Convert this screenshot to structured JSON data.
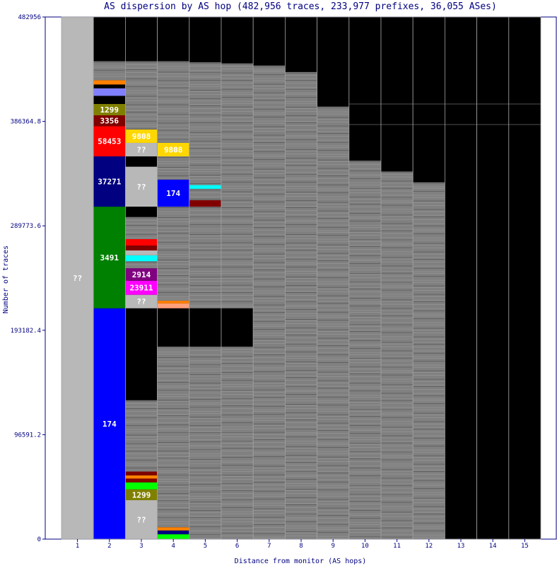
{
  "chart_data": {
    "type": "bar",
    "title": "AS dispersion by AS hop (482,956 traces, 233,977 prefixes, 36,055 ASes)",
    "xlabel": "Distance from monitor (AS hops)",
    "ylabel": "Number of traces",
    "ylim": [
      0,
      482956
    ],
    "yticks": [
      "0",
      "96591.2",
      "193182.4",
      "289773.6",
      "386364.8",
      "482956"
    ],
    "categories": [
      "1",
      "2",
      "3",
      "4",
      "5",
      "6",
      "7",
      "8",
      "9",
      "10",
      "11",
      "12",
      "13",
      "14",
      "15"
    ],
    "colors": {
      "unknown": "#b8b8b8",
      "minor": "#808080",
      "background": "#000000",
      "line": "#a0a0a0"
    },
    "columns": [
      {
        "hop": "1",
        "top": 482956,
        "segments": [
          {
            "as": "??",
            "start": 0,
            "end": 482956,
            "color": "#b8b8b8"
          }
        ]
      },
      {
        "hop": "2",
        "top": 442000,
        "segments": [
          {
            "as": "174",
            "start": 0,
            "end": 213500,
            "color": "#0000ff"
          },
          {
            "as": "3491",
            "start": 213500,
            "end": 307500,
            "color": "#008000"
          },
          {
            "as": "37271",
            "start": 307500,
            "end": 354000,
            "color": "#000080"
          },
          {
            "as": "58453",
            "start": 354000,
            "end": 382000,
            "color": "#ff0000"
          },
          {
            "as": "3356",
            "start": 382000,
            "end": 392000,
            "color": "#800000"
          },
          {
            "as": "1299",
            "start": 392000,
            "end": 402500,
            "color": "#808000"
          },
          {
            "as": "",
            "start": 402500,
            "end": 410000,
            "color": "#000000"
          },
          {
            "as": "",
            "start": 410000,
            "end": 417000,
            "color": "#8080ff"
          },
          {
            "as": "",
            "start": 417000,
            "end": 420500,
            "color": "#000000"
          },
          {
            "as": "",
            "start": 420500,
            "end": 424500,
            "color": "#ff8000"
          },
          {
            "as": "",
            "start": 424500,
            "end": 442000,
            "color": "#808080"
          }
        ]
      },
      {
        "hop": "3",
        "top": 442000,
        "segments": [
          {
            "as": "??",
            "start": 0,
            "end": 36000,
            "color": "#b8b8b8"
          },
          {
            "as": "1299",
            "start": 36000,
            "end": 46000,
            "color": "#808000"
          },
          {
            "as": "",
            "start": 46000,
            "end": 52500,
            "color": "#00ff00"
          },
          {
            "as": "",
            "start": 52500,
            "end": 56000,
            "color": "#800000"
          },
          {
            "as": "",
            "start": 56000,
            "end": 59000,
            "color": "#ff8000"
          },
          {
            "as": "",
            "start": 59000,
            "end": 62500,
            "color": "#800000"
          },
          {
            "as": "",
            "start": 62500,
            "end": 128500,
            "color": "#808080"
          },
          {
            "as": "",
            "start": 128500,
            "end": 213500,
            "color": "#000000"
          },
          {
            "as": "??",
            "start": 213500,
            "end": 226000,
            "color": "#b8b8b8"
          },
          {
            "as": "23911",
            "start": 226000,
            "end": 239000,
            "color": "#ff00ff"
          },
          {
            "as": "2914",
            "start": 239000,
            "end": 250500,
            "color": "#800080"
          },
          {
            "as": "",
            "start": 250500,
            "end": 257000,
            "color": "#808080"
          },
          {
            "as": "",
            "start": 257000,
            "end": 262500,
            "color": "#00ffff"
          },
          {
            "as": "",
            "start": 262500,
            "end": 267000,
            "color": "#b8b8b8"
          },
          {
            "as": "",
            "start": 267000,
            "end": 271500,
            "color": "#800000"
          },
          {
            "as": "",
            "start": 271500,
            "end": 277500,
            "color": "#ff0000"
          },
          {
            "as": "",
            "start": 277500,
            "end": 298000,
            "color": "#808080"
          },
          {
            "as": "",
            "start": 298000,
            "end": 307500,
            "color": "#000000"
          },
          {
            "as": "??",
            "start": 307500,
            "end": 344500,
            "color": "#b8b8b8"
          },
          {
            "as": "",
            "start": 344500,
            "end": 348000,
            "color": "#000000"
          },
          {
            "as": "",
            "start": 348000,
            "end": 354000,
            "color": "#000000"
          },
          {
            "as": "??",
            "start": 354000,
            "end": 366500,
            "color": "#b8b8b8"
          },
          {
            "as": "9808",
            "start": 366500,
            "end": 379000,
            "color": "#ffd700"
          },
          {
            "as": "",
            "start": 379000,
            "end": 442000,
            "color": "#808080"
          }
        ]
      },
      {
        "hop": "4",
        "top": 442000,
        "segments": [
          {
            "as": "",
            "start": 0,
            "end": 4500,
            "color": "#00ff00"
          },
          {
            "as": "",
            "start": 4500,
            "end": 8000,
            "color": "#000080"
          },
          {
            "as": "",
            "start": 8000,
            "end": 11000,
            "color": "#ff8000"
          },
          {
            "as": "",
            "start": 11000,
            "end": 178000,
            "color": "#808080"
          },
          {
            "as": "",
            "start": 178000,
            "end": 213500,
            "color": "#000000"
          },
          {
            "as": "",
            "start": 213500,
            "end": 218000,
            "color": "#ffa07a"
          },
          {
            "as": "",
            "start": 218000,
            "end": 220500,
            "color": "#ff8000"
          },
          {
            "as": "",
            "start": 220500,
            "end": 307500,
            "color": "#808080"
          },
          {
            "as": "174",
            "start": 307500,
            "end": 332500,
            "color": "#0000ff"
          },
          {
            "as": "",
            "start": 332500,
            "end": 354000,
            "color": "#808080"
          },
          {
            "as": "9808",
            "start": 354000,
            "end": 366500,
            "color": "#ffd700"
          },
          {
            "as": "",
            "start": 366500,
            "end": 442000,
            "color": "#808080"
          }
        ]
      },
      {
        "hop": "5",
        "top": 441000,
        "segments": [
          {
            "as": "",
            "start": 0,
            "end": 178000,
            "color": "#808080"
          },
          {
            "as": "",
            "start": 178000,
            "end": 213500,
            "color": "#000000"
          },
          {
            "as": "",
            "start": 213500,
            "end": 307500,
            "color": "#808080"
          },
          {
            "as": "",
            "start": 307500,
            "end": 313500,
            "color": "#800000"
          },
          {
            "as": "",
            "start": 313500,
            "end": 324000,
            "color": "#808080"
          },
          {
            "as": "",
            "start": 324000,
            "end": 327500,
            "color": "#00ffff"
          },
          {
            "as": "",
            "start": 327500,
            "end": 441000,
            "color": "#808080"
          }
        ]
      },
      {
        "hop": "6",
        "top": 440000,
        "segments": [
          {
            "as": "",
            "start": 0,
            "end": 178000,
            "color": "#808080"
          },
          {
            "as": "",
            "start": 178000,
            "end": 213500,
            "color": "#000000"
          },
          {
            "as": "",
            "start": 213500,
            "end": 440000,
            "color": "#808080"
          }
        ]
      },
      {
        "hop": "7",
        "top": 438000,
        "segments": [
          {
            "as": "",
            "start": 0,
            "end": 438000,
            "color": "#808080"
          }
        ]
      },
      {
        "hop": "8",
        "top": 432000,
        "segments": [
          {
            "as": "",
            "start": 0,
            "end": 432000,
            "color": "#808080"
          }
        ]
      },
      {
        "hop": "9",
        "top": 400000,
        "segments": [
          {
            "as": "",
            "start": 0,
            "end": 400000,
            "color": "#808080"
          }
        ]
      },
      {
        "hop": "10",
        "top": 350000,
        "segments": [
          {
            "as": "",
            "start": 0,
            "end": 350000,
            "color": "#808080"
          }
        ]
      },
      {
        "hop": "11",
        "top": 340000,
        "segments": [
          {
            "as": "",
            "start": 0,
            "end": 340000,
            "color": "#808080"
          }
        ]
      },
      {
        "hop": "12",
        "top": 330000,
        "segments": [
          {
            "as": "",
            "start": 0,
            "end": 330000,
            "color": "#808080"
          }
        ]
      },
      {
        "hop": "13",
        "top": 0,
        "segments": []
      },
      {
        "hop": "14",
        "top": 0,
        "segments": []
      },
      {
        "hop": "15",
        "top": 0,
        "segments": []
      }
    ]
  }
}
